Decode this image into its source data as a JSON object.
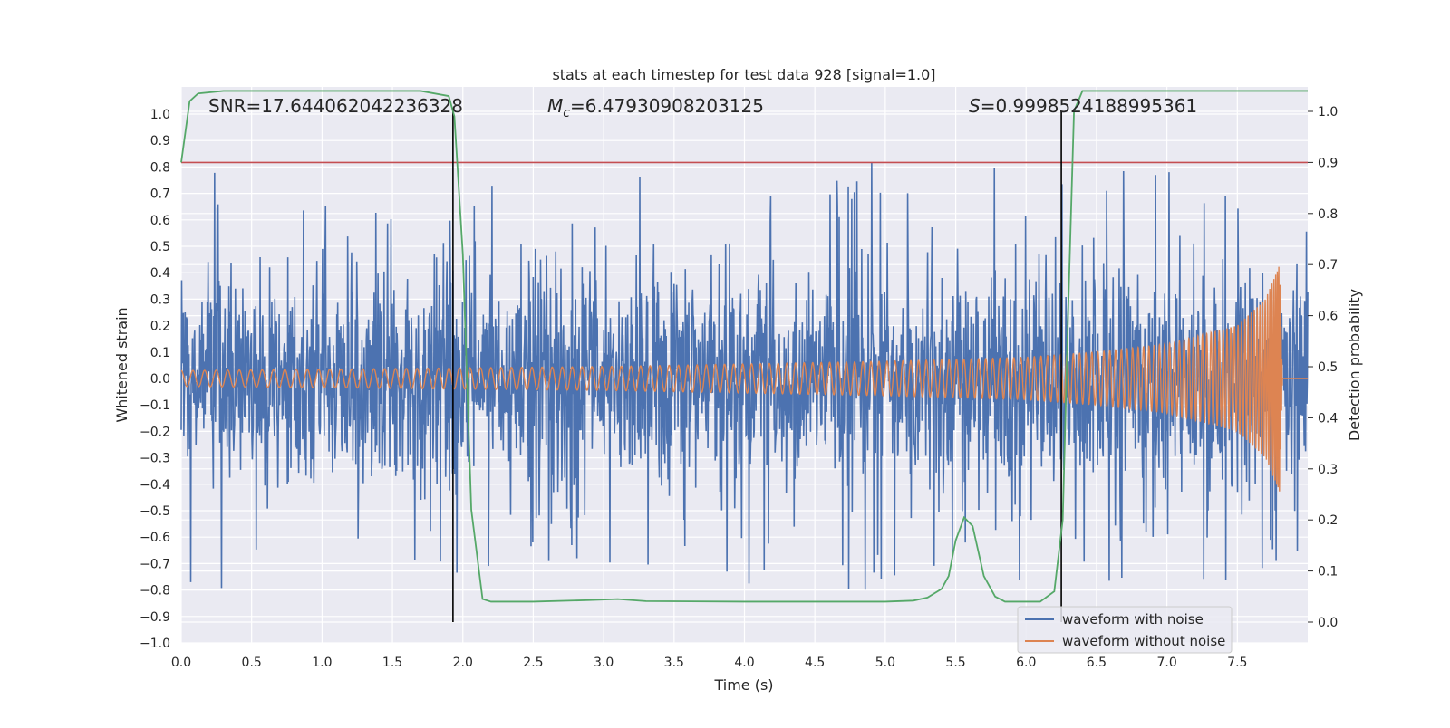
{
  "chart_data": {
    "type": "line",
    "title": "stats at each timestep for test data 928 [signal=1.0]",
    "xlabel": "Time (s)",
    "ylabel": "Whitened strain",
    "y2label": "Detection probability",
    "xlim": [
      0.0,
      8.0
    ],
    "ylim": [
      -1.0,
      1.0
    ],
    "y2lim": [
      -0.05,
      1.05
    ],
    "xticks": [
      "0.0",
      "0.5",
      "1.0",
      "1.5",
      "2.0",
      "2.5",
      "3.0",
      "3.5",
      "4.0",
      "4.5",
      "5.0",
      "5.5",
      "6.0",
      "6.5",
      "7.0",
      "7.5"
    ],
    "yticks": [
      "1.0",
      "0.9",
      "0.8",
      "0.7",
      "0.6",
      "0.5",
      "0.4",
      "0.3",
      "0.2",
      "0.1",
      "0.0",
      "−0.1",
      "−0.2",
      "−0.3",
      "−0.4",
      "−0.5",
      "−0.6",
      "−0.7",
      "−0.8",
      "−0.9",
      "−1.0"
    ],
    "y2ticks": [
      "1.0",
      "0.9",
      "0.8",
      "0.7",
      "0.6",
      "0.5",
      "0.4",
      "0.3",
      "0.2",
      "0.1",
      "0.0"
    ],
    "grid": true,
    "legend_position": "bottom-right",
    "stats": {
      "snr": "SNR=17.644062042236328",
      "mc_symbol": "M",
      "mc_sub": "c",
      "mc_value": "=6.47930908203125",
      "s_symbol": "S",
      "s_value": "=0.9998524188995361"
    },
    "series": [
      {
        "name": "waveform with noise",
        "color": "#4c72b0",
        "noise_amplitude": 0.2,
        "spike_max": 0.96,
        "spike_min": -0.92
      },
      {
        "name": "waveform without noise",
        "color": "#dd8452",
        "envelope_t": [
          0.0,
          1.0,
          2.0,
          3.0,
          4.0,
          5.0,
          6.0,
          6.5,
          7.0,
          7.5,
          7.7,
          7.8,
          7.82,
          8.0
        ],
        "envelope_amp": [
          0.03,
          0.035,
          0.04,
          0.045,
          0.055,
          0.065,
          0.08,
          0.1,
          0.13,
          0.2,
          0.3,
          0.43,
          0.0,
          0.0
        ],
        "merger_time": 7.82
      },
      {
        "name": "detection probability",
        "color": "#55a868",
        "axis": "right",
        "t": [
          0.0,
          0.06,
          0.12,
          0.3,
          1.0,
          1.7,
          1.9,
          1.94,
          2.0,
          2.06,
          2.14,
          2.2,
          2.5,
          2.9,
          3.1,
          3.3,
          4.0,
          5.0,
          5.2,
          5.3,
          5.4,
          5.45,
          5.5,
          5.56,
          5.62,
          5.7,
          5.78,
          5.85,
          5.95,
          6.1,
          6.2,
          6.26,
          6.3,
          6.34,
          6.4,
          7.0,
          7.5,
          8.0
        ],
        "p": [
          0.9,
          1.02,
          1.035,
          1.04,
          1.04,
          1.04,
          1.03,
          0.99,
          0.72,
          0.22,
          0.045,
          0.04,
          0.04,
          0.043,
          0.045,
          0.041,
          0.04,
          0.04,
          0.042,
          0.048,
          0.065,
          0.09,
          0.16,
          0.205,
          0.188,
          0.09,
          0.05,
          0.04,
          0.04,
          0.04,
          0.06,
          0.2,
          0.62,
          1.0,
          1.04,
          1.04,
          1.04,
          1.04
        ]
      },
      {
        "name": "threshold",
        "color": "#c44e52",
        "axis": "right",
        "value": 0.9
      }
    ],
    "vlines": [
      1.93,
      6.25
    ],
    "vline_color": "#000000"
  }
}
